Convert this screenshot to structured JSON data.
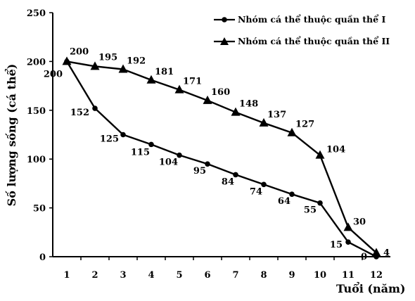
{
  "chart_data": {
    "type": "line",
    "title": "",
    "xlabel": "Tuổi (năm)",
    "ylabel": "Số lượng sống (cá thể)",
    "x": [
      1,
      2,
      3,
      4,
      5,
      6,
      7,
      8,
      9,
      10,
      11,
      12
    ],
    "xlim": [
      0.5,
      12.5
    ],
    "ylim": [
      0,
      250
    ],
    "yticks": [
      0,
      50,
      100,
      150,
      200,
      250
    ],
    "grid": false,
    "legend_position": "top-right",
    "series": [
      {
        "name": "Nhóm cá thể thuộc quần thể I",
        "marker": "circle",
        "color": "#000000",
        "values": [
          200,
          152,
          125,
          115,
          104,
          95,
          84,
          74,
          64,
          55,
          15,
          0
        ],
        "labels": [
          "200",
          "152",
          "125",
          "115",
          "104",
          "95",
          "84",
          "74",
          "64",
          "55",
          "15",
          "0"
        ]
      },
      {
        "name": "Nhóm cá thể thuộc quần thể II",
        "marker": "triangle",
        "color": "#000000",
        "values": [
          200,
          195,
          192,
          181,
          171,
          160,
          148,
          137,
          127,
          104,
          30,
          4
        ],
        "labels": [
          "200",
          "195",
          "192",
          "181",
          "171",
          "160",
          "148",
          "137",
          "127",
          "104",
          "30",
          "4"
        ]
      }
    ]
  }
}
